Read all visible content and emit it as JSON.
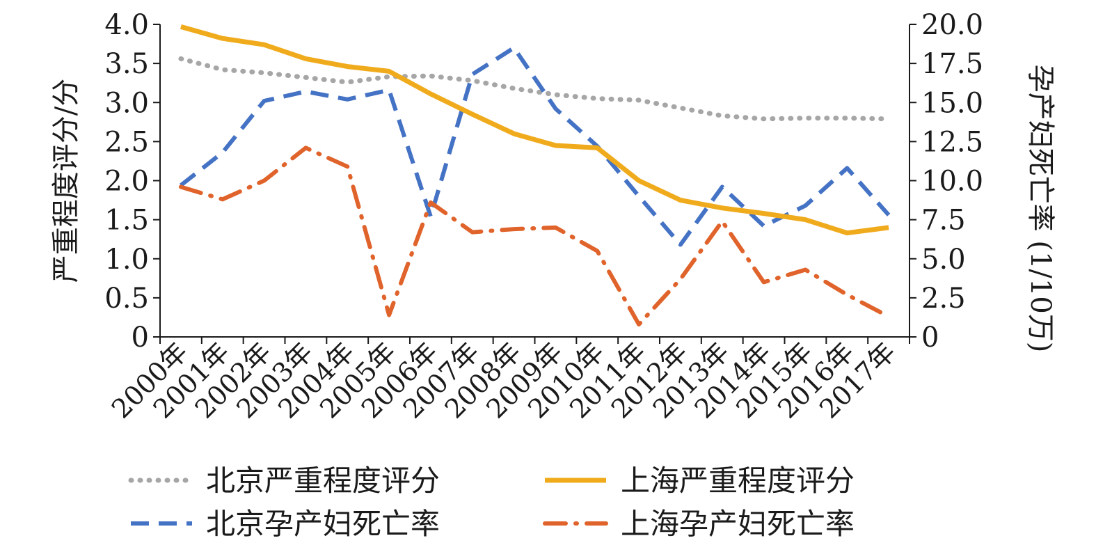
{
  "chart_data": {
    "type": "line",
    "categories": [
      "2000年",
      "2001年",
      "2002年",
      "2003年",
      "2004年",
      "2005年",
      "2006年",
      "2007年",
      "2008年",
      "2009年",
      "2010年",
      "2011年",
      "2012年",
      "2013年",
      "2014年",
      "2015年",
      "2016年",
      "2017年"
    ],
    "ylabel_left": "严重程度评分/分",
    "ylabel_right": "孕产妇死亡率 (1/10万)",
    "ylim_left": [
      0,
      4.0
    ],
    "ylim_right": [
      0,
      20.0
    ],
    "yticks_left": [
      "0",
      "0.5",
      "1.0",
      "1.5",
      "2.0",
      "2.5",
      "3.0",
      "3.5",
      "4.0"
    ],
    "yticks_right": [
      "0",
      "2.5",
      "5.0",
      "7.5",
      "10.0",
      "12.5",
      "15.0",
      "17.5",
      "20.0"
    ],
    "grid": false,
    "legend_position": "bottom",
    "series": [
      {
        "name": "北京严重程度评分",
        "axis": "left",
        "color": "#a6a6a6",
        "style": "dotted",
        "values": [
          3.56,
          3.42,
          3.38,
          3.32,
          3.26,
          3.33,
          3.34,
          3.28,
          3.18,
          3.1,
          3.05,
          3.03,
          2.93,
          2.83,
          2.79,
          2.8,
          2.8,
          2.79
        ]
      },
      {
        "name": "上海严重程度评分",
        "axis": "left",
        "color": "#f0ab1d",
        "style": "solid",
        "values": [
          3.97,
          3.82,
          3.74,
          3.56,
          3.46,
          3.4,
          3.11,
          2.85,
          2.6,
          2.45,
          2.42,
          2.0,
          1.75,
          1.65,
          1.58,
          1.5,
          1.33,
          1.4
        ]
      },
      {
        "name": "北京孕产妇死亡率",
        "axis": "right",
        "color": "#4472c4",
        "style": "dashed",
        "values": [
          9.7,
          11.8,
          15.1,
          15.7,
          15.2,
          15.8,
          7.7,
          16.8,
          18.5,
          14.6,
          12.2,
          9.0,
          5.9,
          9.6,
          7.1,
          8.4,
          10.8,
          7.8
        ]
      },
      {
        "name": "上海孕产妇死亡率",
        "axis": "right",
        "color": "#e0632b",
        "style": "dashdot",
        "values": [
          9.6,
          8.8,
          10.0,
          12.1,
          10.9,
          1.4,
          8.6,
          6.7,
          6.9,
          7.0,
          5.5,
          0.8,
          3.7,
          7.4,
          3.5,
          4.3,
          2.7,
          1.3
        ]
      }
    ]
  }
}
